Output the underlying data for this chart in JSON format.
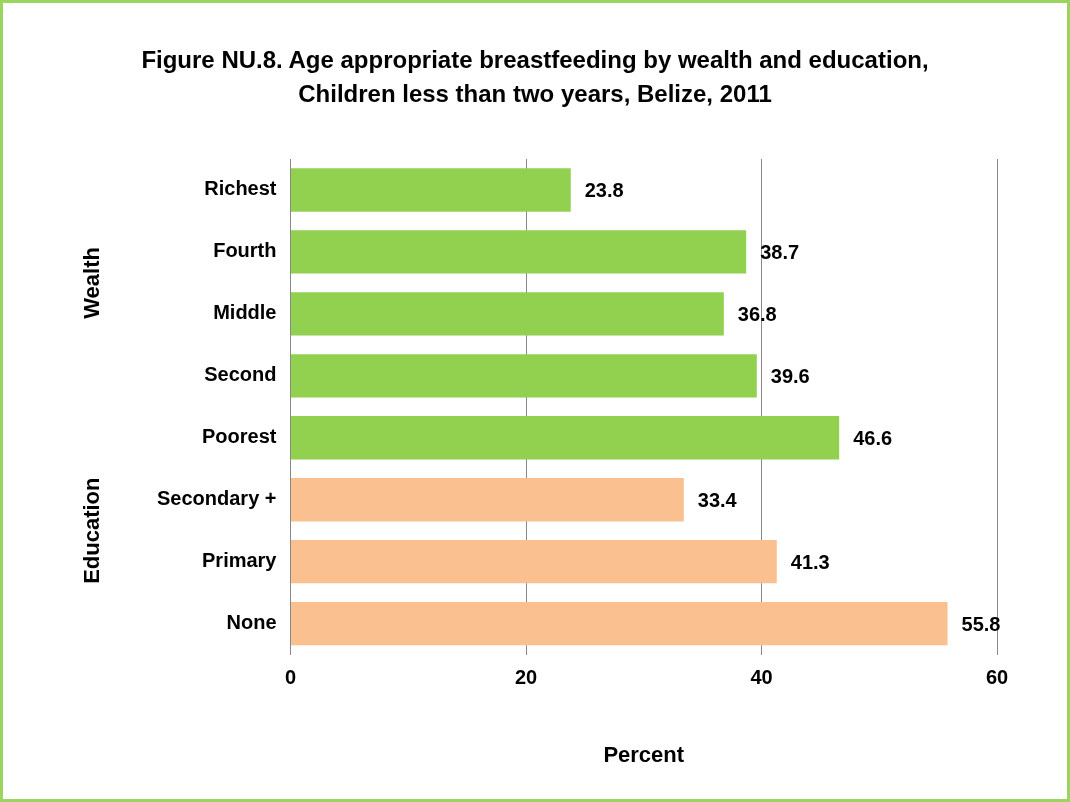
{
  "chart_data": {
    "type": "bar",
    "orientation": "horizontal",
    "title": "Figure NU.8. Age appropriate breastfeeding by wealth and education,\nChildren less than two years, Belize, 2011",
    "xlabel": "Percent",
    "categories": [
      "Richest",
      "Fourth",
      "Middle",
      "Second",
      "Poorest",
      "Secondary +",
      "Primary",
      "None"
    ],
    "values": [
      23.8,
      38.7,
      36.8,
      39.6,
      46.6,
      33.4,
      41.3,
      55.8
    ],
    "colors": [
      "#92d050",
      "#92d050",
      "#92d050",
      "#92d050",
      "#92d050",
      "#fac090",
      "#fac090",
      "#fac090"
    ],
    "xlim": [
      0,
      60
    ],
    "xticks": [
      0,
      20,
      40,
      60
    ],
    "grid": "x",
    "legend": false,
    "data_labels": true,
    "annotations": [
      "Wealth",
      "Education"
    ]
  }
}
